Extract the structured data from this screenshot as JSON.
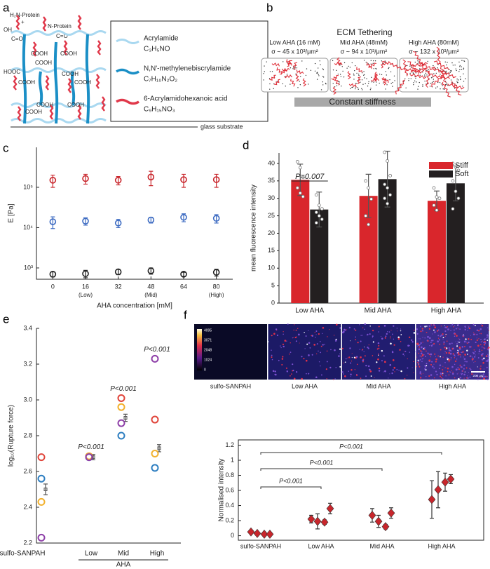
{
  "panel_labels": [
    "a",
    "b",
    "c",
    "d",
    "e",
    "f"
  ],
  "diagram_a": {
    "protein_1": "H₂N-Protein",
    "plus": "+",
    "oh": "OH",
    "co_1": "C=O",
    "protein_2": "N-Protein",
    "co_2": "C=O",
    "acid_labels": [
      "COOH",
      "COOH",
      "COOH",
      "HOOC",
      "COOH",
      "COOH",
      "COOH",
      "COOH",
      "COOH",
      "COOH"
    ],
    "legend": [
      {
        "name": "Acrylamide",
        "formula": "C₃H₅NO",
        "color": "#a9d8f0"
      },
      {
        "name": "N,N'-methylenebiscrylamide",
        "formula": "C₇H₁₀N₂O₂",
        "color": "#1b8fc6"
      },
      {
        "name": "6-Acrylamidohexanoic acid",
        "formula": "C₉H₁₅NO₃",
        "color": "#e0384a"
      }
    ],
    "substrate": "glass substrate"
  },
  "diagram_b": {
    "title": "ECM Tethering",
    "conditions": [
      {
        "label": "Low AHA (16 mM)",
        "density": "σ ~ 45 x 10³/μm²"
      },
      {
        "label": "Mid AHA (48mM)",
        "density": "σ ~ 94 x 10³/μm²"
      },
      {
        "label": "High AHA (80mM)",
        "density": "σ ~ 132 x 10³/μm²"
      }
    ],
    "bar_label": "Constant stiffness"
  },
  "image_f": {
    "labels": [
      "sulfo-SANPAH",
      "Low AHA",
      "Mid AHA",
      "High AHA"
    ],
    "colorbar_ticks": [
      4095,
      3071,
      2048,
      1024,
      0
    ],
    "scale_bar": "200 μm"
  },
  "chart_data": [
    {
      "type": "scatter",
      "ylabel": "E [Pa]",
      "xlabel": "AHA concentration [mM]",
      "log_y": true,
      "x": [
        0,
        16,
        32,
        48,
        64,
        80
      ],
      "xlim": [
        -8,
        88
      ],
      "xticks": [
        0,
        16,
        32,
        48,
        64,
        80
      ],
      "xtick_notes": [
        null,
        "(Low)",
        null,
        "(Mid)",
        null,
        "(High)"
      ],
      "ylim": [
        525,
        980000
      ],
      "yticks": [
        {
          "value": 1000,
          "label": "10³"
        },
        {
          "value": 10000,
          "label": "10⁴"
        },
        {
          "value": 100000,
          "label": "10⁵"
        }
      ],
      "series": [
        {
          "color": "#c9272d",
          "values": [
            150000,
            165000,
            150000,
            180000,
            155000,
            155000
          ],
          "errors": [
            50000,
            45000,
            35000,
            70000,
            55000,
            55000
          ]
        },
        {
          "color": "#3d6bc2",
          "values": [
            14000,
            14500,
            13000,
            15500,
            18000,
            17000
          ],
          "errors": [
            4500,
            3000,
            3000,
            2500,
            4000,
            4000
          ]
        },
        {
          "color": "#222222",
          "values": [
            700,
            720,
            800,
            850,
            700,
            780
          ],
          "errors": [
            100,
            150,
            120,
            150,
            80,
            150
          ]
        }
      ]
    },
    {
      "type": "bar",
      "ylabel": "mean fluorescence intensity",
      "categories": [
        "Low AHA",
        "Mid AHA",
        "High AHA"
      ],
      "ylim": [
        0,
        43
      ],
      "yticks": [
        0,
        5,
        10,
        15,
        20,
        25,
        30,
        35,
        40
      ],
      "legend": "upper right",
      "annotation": "P=0.007",
      "series": [
        {
          "name": "Stiff",
          "color": "#d9262c",
          "values": [
            35.3,
            30.7,
            29.3
          ],
          "errors": [
            4.5,
            6.2,
            2.8
          ],
          "points": [
            [
              40.5,
              38.8,
              36,
              33,
              31.5,
              30.5
            ],
            [
              35,
              33,
              29.8,
              25,
              22.5
            ],
            [
              33,
              30.4,
              30,
              28,
              26.6
            ]
          ]
        },
        {
          "name": "Soft",
          "color": "#231f20",
          "values": [
            26.8,
            35.5,
            34.3
          ],
          "errors": [
            5,
            8,
            5
          ],
          "points": [
            [
              31,
              28,
              27,
              26,
              25,
              24,
              23
            ],
            [
              43.2,
              40.7,
              36.5,
              34,
              33,
              31,
              30,
              28.5
            ],
            [
              40,
              39,
              38,
              35,
              32,
              30,
              27
            ]
          ]
        }
      ]
    },
    {
      "type": "strip",
      "ylabel": "log₁₀(Rupture force)",
      "categories": [
        "sulfo-SANPAH",
        "Low",
        "Mid",
        "High"
      ],
      "group_label": "AHA",
      "ylim": [
        2.2,
        3.4
      ],
      "yticks": [
        2.2,
        2.4,
        2.6,
        2.8,
        {
          "value": 3,
          "label": "3.0"
        },
        3.2,
        3.4
      ],
      "series": [
        {
          "color": "#e0453b",
          "values": [
            2.68,
            2.685,
            3.01,
            2.89
          ]
        },
        {
          "color": "#2f7fc1",
          "values": [
            2.56,
            2.68,
            2.8,
            2.62
          ]
        },
        {
          "color": "#f2b12e",
          "values": [
            2.43,
            2.685,
            2.96,
            2.7
          ]
        },
        {
          "color": "#8e3fa8",
          "values": [
            2.23,
            2.68,
            2.87,
            3.23
          ]
        }
      ],
      "mean": {
        "color": "#555555",
        "values": [
          2.5,
          2.68,
          2.9,
          2.73
        ],
        "errors": [
          0.03,
          0.015,
          0.02,
          0.02
        ]
      },
      "annotations": [
        "P<0.001",
        "P<0.001",
        "P<0.001"
      ]
    },
    {
      "type": "errorbar",
      "ylabel": "Normalised intensity",
      "categories": [
        "sulfo-SANPAH",
        "Low AHA",
        "Mid AHA",
        "High AHA"
      ],
      "ylim": [
        -0.06,
        1.27
      ],
      "yticks": [
        0,
        0.2,
        0.4,
        0.6,
        0.8,
        1,
        1.2
      ],
      "color": "#c8262c",
      "values": [
        [
          0.05,
          0.03,
          0.02,
          0.02
        ],
        [
          0.22,
          0.19,
          0.18,
          0.36
        ],
        [
          0.27,
          0.19,
          0.12,
          0.3
        ],
        [
          0.48,
          0.61,
          0.71,
          0.75
        ]
      ],
      "errors": [
        [
          0.01,
          0.01,
          0.01,
          0.01
        ],
        [
          0.05,
          0.1,
          0.03,
          0.07
        ],
        [
          0.09,
          0.08,
          0.03,
          0.07
        ],
        [
          0.25,
          0.24,
          0.12,
          0.06
        ]
      ],
      "annotations": [
        "P<0.001",
        "P<0.001",
        "P<0.001"
      ]
    }
  ]
}
